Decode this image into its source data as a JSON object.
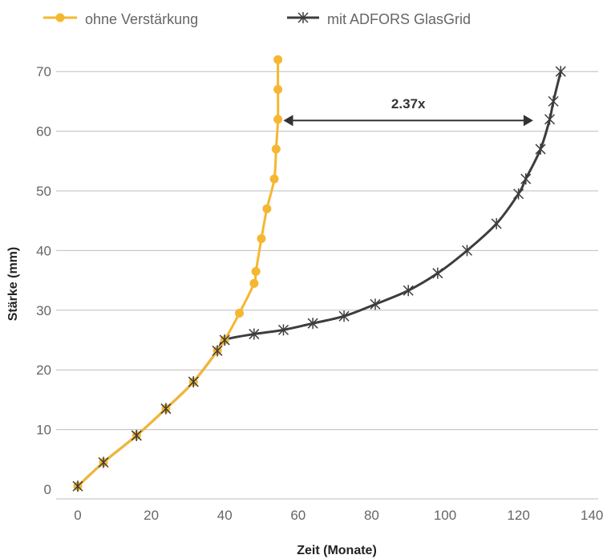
{
  "chart_data": {
    "type": "line",
    "xlabel": "Zeit (Monate)",
    "ylabel": "Stärke (mm)",
    "xlim": [
      0,
      140
    ],
    "ylim": [
      0,
      70
    ],
    "xticks": [
      0,
      20,
      40,
      60,
      80,
      100,
      120,
      140
    ],
    "yticks": [
      0,
      10,
      20,
      30,
      40,
      50,
      60,
      70
    ],
    "grid": "horizontal",
    "legend_position": "top",
    "series": [
      {
        "name": "ohne Verstärkung",
        "color": "#F5B731",
        "marker": "circle",
        "points": [
          [
            0,
            0.5
          ],
          [
            7,
            4.5
          ],
          [
            16,
            9
          ],
          [
            24,
            13.5
          ],
          [
            31.5,
            18
          ],
          [
            38,
            23.2
          ],
          [
            40,
            25
          ],
          [
            44,
            29.5
          ],
          [
            48,
            34.5
          ],
          [
            48.5,
            36.5
          ],
          [
            50,
            42
          ],
          [
            51.5,
            47
          ],
          [
            53.5,
            52
          ],
          [
            54,
            57
          ],
          [
            54.5,
            62
          ],
          [
            54.5,
            67
          ],
          [
            54.5,
            72
          ]
        ]
      },
      {
        "name": "mit ADFORS GlasGrid",
        "color": "#3D3D3D",
        "marker": "asterisk",
        "points": [
          [
            0,
            0.5
          ],
          [
            7,
            4.5
          ],
          [
            16,
            9
          ],
          [
            24,
            13.5
          ],
          [
            31.5,
            18
          ],
          [
            38,
            23.2
          ],
          [
            40,
            25
          ],
          [
            48,
            26
          ],
          [
            56,
            26.7
          ],
          [
            64,
            27.8
          ],
          [
            72.5,
            29
          ],
          [
            81,
            31
          ],
          [
            90,
            33.3
          ],
          [
            98,
            36.2
          ],
          [
            106,
            40
          ],
          [
            114,
            44.5
          ],
          [
            120,
            49.5
          ],
          [
            122,
            52
          ],
          [
            126,
            57
          ],
          [
            128.5,
            62
          ],
          [
            129.5,
            65
          ],
          [
            131.5,
            70
          ]
        ]
      }
    ],
    "annotations": [
      {
        "text": "2.37x",
        "type": "double-arrow",
        "y": 61.8,
        "x_start": 56,
        "x_end": 124
      }
    ]
  },
  "legend": {
    "items": [
      {
        "label": "ohne Verstärkung",
        "color": "#F5B731",
        "marker": "circle"
      },
      {
        "label": "mit ADFORS GlasGrid",
        "color": "#3D3D3D",
        "marker": "asterisk"
      }
    ]
  }
}
